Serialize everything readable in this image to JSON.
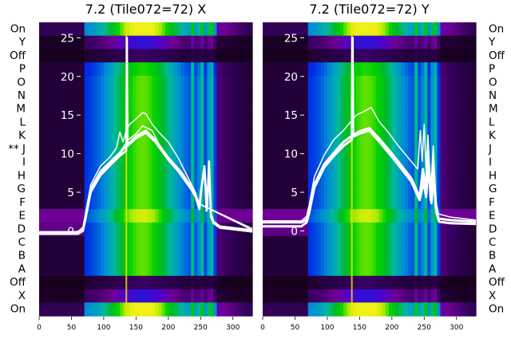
{
  "chart_data": [
    {
      "type": "heatmap",
      "title": "7.2 (Tile072=72) X",
      "x_ticks": [
        0,
        50,
        100,
        150,
        200,
        250,
        300
      ],
      "xlim": [
        0,
        330
      ],
      "y_ticks": [
        0,
        5,
        10,
        15,
        20,
        25
      ],
      "ylim": [
        -11,
        27
      ],
      "row_labels": [
        "On",
        "Y",
        "Off",
        "P",
        "O",
        "N",
        "M",
        "L",
        "K",
        "J",
        "I",
        "H",
        "G",
        "F",
        "E",
        "D",
        "C",
        "B",
        "A",
        "Off",
        "X",
        "On"
      ],
      "marked_row_label": "J",
      "marked_row_prefix": "**",
      "bright_columns": [
        135
      ],
      "traces": [
        {
          "name": "",
          "width": 2.5,
          "points": [
            [
              0,
              -0.2
            ],
            [
              60,
              -0.2
            ],
            [
              68,
              0.3
            ],
            [
              72,
              2
            ],
            [
              80,
              5.5
            ],
            [
              95,
              7.5
            ],
            [
              110,
              8.8
            ],
            [
              125,
              10
            ],
            [
              138,
              11.3
            ],
            [
              150,
              12.3
            ],
            [
              165,
              13
            ],
            [
              180,
              11.8
            ],
            [
              200,
              9.5
            ],
            [
              220,
              7.6
            ],
            [
              240,
              5.2
            ],
            [
              248,
              3
            ],
            [
              250,
              5
            ],
            [
              256,
              8.4
            ],
            [
              260,
              3
            ],
            [
              263,
              9
            ],
            [
              266,
              2.2
            ],
            [
              270,
              1.2
            ],
            [
              280,
              0.6
            ],
            [
              330,
              0.1
            ]
          ]
        },
        {
          "name": "",
          "width": 2.5,
          "points": [
            [
              0,
              -0.4
            ],
            [
              60,
              -0.4
            ],
            [
              68,
              0
            ],
            [
              72,
              1.6
            ],
            [
              80,
              5
            ],
            [
              95,
              7.2
            ],
            [
              110,
              8.5
            ],
            [
              125,
              9.7
            ],
            [
              135,
              10.4
            ],
            [
              136,
              25
            ],
            [
              137,
              11
            ],
            [
              150,
              12
            ],
            [
              165,
              12.7
            ],
            [
              180,
              11.5
            ],
            [
              200,
              9.2
            ],
            [
              220,
              7.3
            ],
            [
              240,
              5
            ],
            [
              248,
              2.8
            ],
            [
              252,
              6
            ],
            [
              256,
              8
            ],
            [
              259,
              2.6
            ],
            [
              263,
              7.8
            ],
            [
              266,
              1.8
            ],
            [
              270,
              1
            ],
            [
              280,
              0.4
            ],
            [
              330,
              -0.1
            ]
          ]
        },
        {
          "name": "",
          "width": 1.5,
          "points": [
            [
              0,
              -0.1
            ],
            [
              60,
              -0.1
            ],
            [
              68,
              0.5
            ],
            [
              72,
              2.4
            ],
            [
              80,
              6
            ],
            [
              95,
              8.4
            ],
            [
              110,
              9.6
            ],
            [
              120,
              10.8
            ],
            [
              125,
              12.8
            ],
            [
              130,
              11.5
            ],
            [
              135,
              13
            ],
            [
              140,
              13.8
            ],
            [
              150,
              14.5
            ],
            [
              160,
              15.3
            ],
            [
              165,
              15.2
            ],
            [
              175,
              13.8
            ],
            [
              185,
              12.8
            ],
            [
              200,
              11.5
            ],
            [
              215,
              9.5
            ],
            [
              230,
              7
            ],
            [
              242,
              5
            ],
            [
              248,
              3.5
            ],
            [
              330,
              0.3
            ]
          ]
        },
        {
          "name": "",
          "width": 1.5,
          "points": [
            [
              0,
              -0.2
            ],
            [
              60,
              -0.2
            ],
            [
              68,
              0.3
            ],
            [
              72,
              2
            ],
            [
              80,
              5.6
            ],
            [
              95,
              7.8
            ],
            [
              110,
              9
            ],
            [
              125,
              10.2
            ],
            [
              138,
              11.8
            ],
            [
              150,
              12.6
            ],
            [
              160,
              13.6
            ],
            [
              175,
              13
            ],
            [
              190,
              10.5
            ],
            [
              205,
              8.8
            ],
            [
              220,
              7.1
            ],
            [
              236,
              5.2
            ],
            [
              248,
              3.5
            ],
            [
              330,
              0.1
            ]
          ]
        }
      ]
    },
    {
      "type": "heatmap",
      "title": "7.2 (Tile072=72) Y",
      "x_ticks": [
        0,
        50,
        100,
        150,
        200,
        250,
        300
      ],
      "xlim": [
        0,
        330
      ],
      "y_ticks": [
        0,
        5,
        10,
        15,
        20,
        25
      ],
      "ylim": [
        -11,
        27
      ],
      "row_labels": [
        "On",
        "Y",
        "Off",
        "P",
        "O",
        "N",
        "M",
        "L",
        "K",
        "J",
        "I",
        "H",
        "G",
        "F",
        "E",
        "D",
        "C",
        "B",
        "A",
        "Off",
        "X",
        "On"
      ],
      "bright_columns": [
        138
      ],
      "traces": [
        {
          "name": "",
          "width": 3,
          "points": [
            [
              0,
              1.1
            ],
            [
              60,
              1.1
            ],
            [
              68,
              1.5
            ],
            [
              72,
              2.8
            ],
            [
              80,
              6
            ],
            [
              95,
              8.6
            ],
            [
              110,
              10.1
            ],
            [
              125,
              11.5
            ],
            [
              138,
              12.3
            ],
            [
              150,
              12.9
            ],
            [
              165,
              13.3
            ],
            [
              180,
              12
            ],
            [
              200,
              10
            ],
            [
              215,
              8.4
            ],
            [
              230,
              6.8
            ],
            [
              243,
              4.4
            ],
            [
              248,
              8
            ],
            [
              252,
              5
            ],
            [
              256,
              10.4
            ],
            [
              260,
              4
            ],
            [
              264,
              9
            ],
            [
              268,
              3
            ],
            [
              272,
              1.6
            ],
            [
              290,
              1.4
            ],
            [
              330,
              1.2
            ]
          ]
        },
        {
          "name": "",
          "width": 3,
          "points": [
            [
              0,
              0.6
            ],
            [
              60,
              0.6
            ],
            [
              68,
              1.1
            ],
            [
              72,
              2.4
            ],
            [
              80,
              5.6
            ],
            [
              95,
              8.2
            ],
            [
              110,
              9.7
            ],
            [
              125,
              11
            ],
            [
              138,
              11.8
            ],
            [
              139,
              25
            ],
            [
              140,
              12.2
            ],
            [
              150,
              12.6
            ],
            [
              165,
              13
            ],
            [
              180,
              11.6
            ],
            [
              200,
              9.6
            ],
            [
              215,
              8
            ],
            [
              230,
              6.4
            ],
            [
              243,
              4
            ],
            [
              249,
              6.4
            ],
            [
              253,
              4.4
            ],
            [
              257,
              8.8
            ],
            [
              261,
              3.6
            ],
            [
              265,
              7
            ],
            [
              269,
              2.4
            ],
            [
              273,
              1.2
            ],
            [
              290,
              1
            ],
            [
              330,
              0.9
            ]
          ]
        },
        {
          "name": "",
          "width": 1.5,
          "points": [
            [
              0,
              1.3
            ],
            [
              60,
              1.3
            ],
            [
              68,
              1.9
            ],
            [
              72,
              3.4
            ],
            [
              80,
              7
            ],
            [
              95,
              9.8
            ],
            [
              110,
              11.8
            ],
            [
              125,
              13
            ],
            [
              135,
              14
            ],
            [
              145,
              15
            ],
            [
              160,
              15.6
            ],
            [
              168,
              16
            ],
            [
              180,
              14.2
            ],
            [
              195,
              12.7
            ],
            [
              210,
              11
            ],
            [
              225,
              9.5
            ],
            [
              240,
              8
            ],
            [
              244,
              13
            ],
            [
              247,
              9
            ],
            [
              250,
              13.8
            ],
            [
              253,
              8
            ],
            [
              256,
              12.4
            ],
            [
              260,
              5
            ],
            [
              264,
              11
            ],
            [
              268,
              4
            ],
            [
              272,
              2.2
            ],
            [
              290,
              1.8
            ],
            [
              330,
              1.4
            ]
          ]
        }
      ]
    }
  ]
}
